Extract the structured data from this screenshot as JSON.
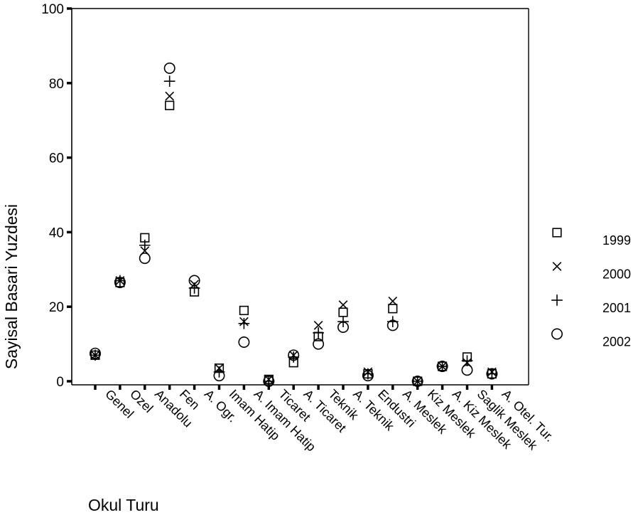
{
  "chart_data": {
    "type": "scatter",
    "xlabel": "Okul Turu",
    "ylabel": "Sayisal Basari Yuzdesi",
    "ylim": [
      0,
      100
    ],
    "yticks": [
      0,
      20,
      40,
      60,
      80,
      100
    ],
    "grid": false,
    "legend_position": "right",
    "categories": [
      "Genel",
      "Ozel",
      "Anadolu",
      "Fen",
      "A. Ogr.",
      "Imam Hatip",
      "A. Imam Hatip",
      "Ticaret",
      "A. Ticaret",
      "Teknik",
      "A. Teknik",
      "Endustri",
      "A. Meslek",
      "Kiz Meslek",
      "A. Kiz Meslek",
      "Saglik Meslek",
      "A. Otel. Tur."
    ],
    "series": [
      {
        "name": "1999",
        "marker": "square",
        "values": [
          7,
          26.5,
          38.5,
          74,
          24,
          3.5,
          19,
          0.5,
          5,
          12,
          18.5,
          2,
          19.5,
          0,
          4,
          6.5,
          2
        ]
      },
      {
        "name": "2000",
        "marker": "x",
        "values": [
          7,
          27,
          35,
          76.5,
          26,
          3.5,
          16,
          0.5,
          7,
          15,
          20.5,
          2.5,
          21.5,
          0,
          4,
          5,
          2.5
        ]
      },
      {
        "name": "2001",
        "marker": "plus",
        "values": [
          7,
          27,
          36.5,
          80.5,
          25,
          2.5,
          15.5,
          0,
          6.5,
          13,
          16,
          2,
          16,
          0,
          4,
          5.5,
          2
        ]
      },
      {
        "name": "2002",
        "marker": "circle",
        "values": [
          7.5,
          26.5,
          33,
          84,
          27,
          1.5,
          10.5,
          0,
          7,
          10,
          14.5,
          1.5,
          15,
          0,
          4,
          3,
          2
        ]
      }
    ]
  }
}
